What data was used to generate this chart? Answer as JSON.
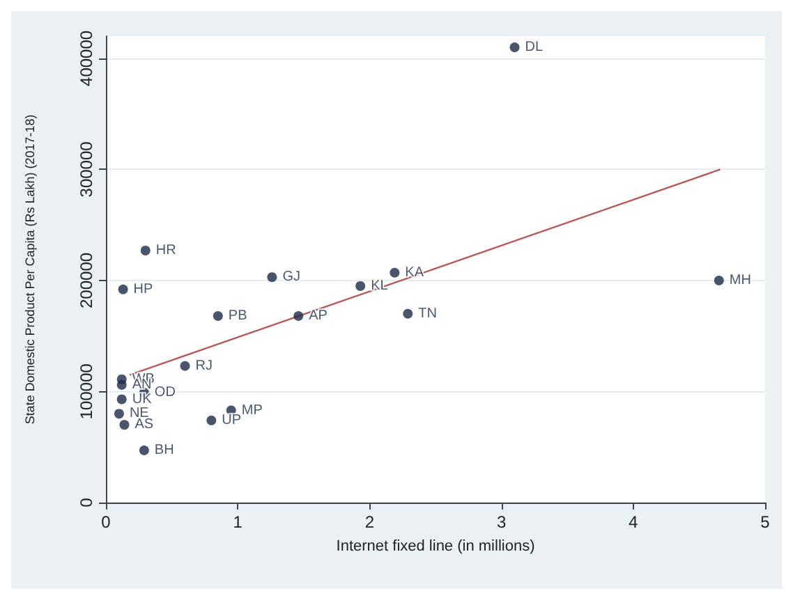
{
  "chart_data": {
    "type": "scatter",
    "xlabel": "Internet fixed line (in millions)",
    "ylabel": "State Domestic Product Per Capita (Rs Lakh) (2017-18)",
    "xlim": [
      0,
      5
    ],
    "xticks": [
      0,
      1,
      2,
      3,
      4,
      5
    ],
    "ylim": [
      0,
      420000
    ],
    "yticks": [
      0,
      100000,
      200000,
      300000,
      400000
    ],
    "grid": "y",
    "series": [
      {
        "marker": "circle",
        "color": "#1b2a48",
        "x": [
          3.1,
          4.65,
          2.19,
          1.93,
          2.29,
          1.26,
          1.46,
          0.85,
          0.3,
          0.13,
          0.6,
          0.12,
          0.12,
          0.12,
          0.29,
          0.1,
          0.14,
          0.29,
          0.95,
          0.8
        ],
        "values": [
          410000,
          200000,
          207000,
          195000,
          170000,
          203000,
          168000,
          168000,
          227000,
          192000,
          123000,
          111000,
          106000,
          93000,
          99000,
          80000,
          70000,
          47000,
          83000,
          74000
        ],
        "value_labels": [
          "DL",
          "MH",
          "KA",
          "KL",
          "TN",
          "GJ",
          "AP",
          "PB",
          "HR",
          "HP",
          "RJ",
          "WB",
          "AN",
          "UK",
          "OD",
          "NE",
          "AS",
          "BH",
          "MP",
          "UP"
        ]
      },
      {
        "type": "line",
        "marker": "none",
        "color": "#b5595a",
        "x": [
          0.18,
          4.66
        ],
        "values": [
          115000,
          300000
        ]
      }
    ]
  }
}
